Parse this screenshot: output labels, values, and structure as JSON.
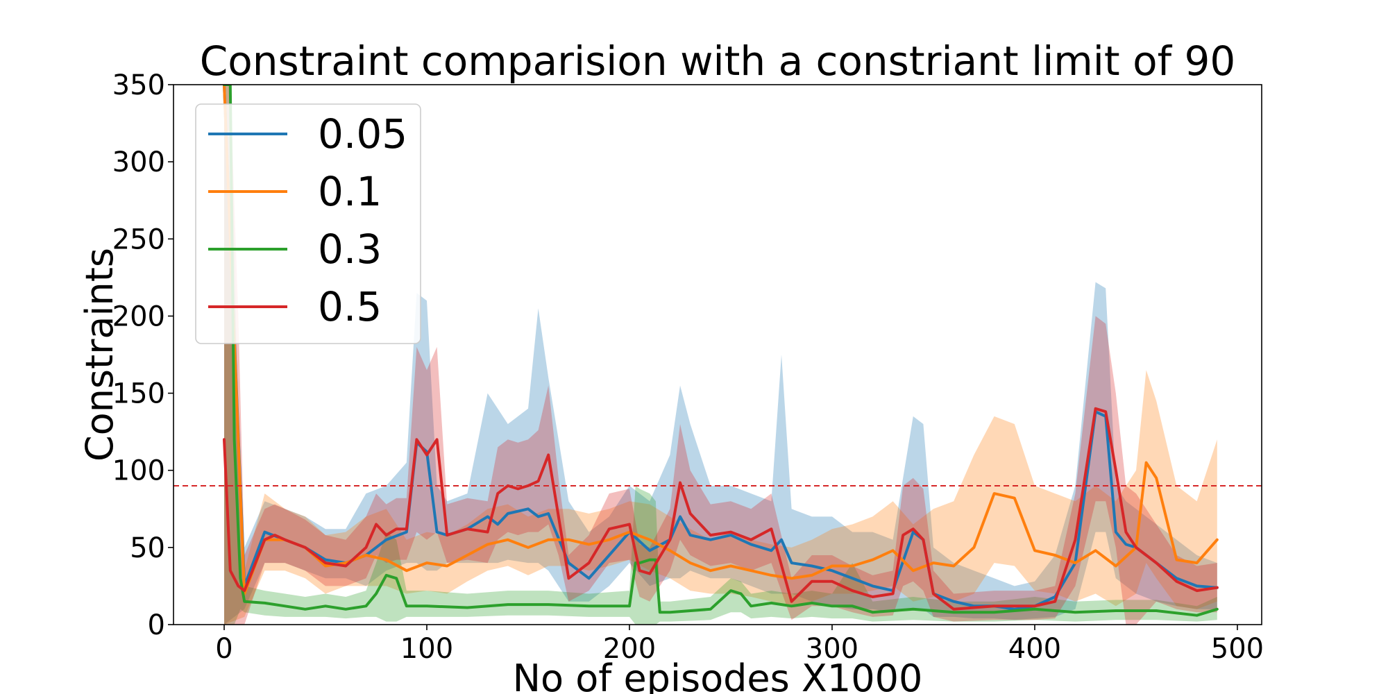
{
  "chart_data": {
    "type": "line",
    "title": "Constraint comparision with a constriant limit of 90",
    "xlabel": "No of episodes X1000",
    "ylabel": "Constraints",
    "xlim": [
      -25,
      512
    ],
    "ylim": [
      0,
      350
    ],
    "xticks": [
      0,
      100,
      200,
      300,
      400,
      500
    ],
    "yticks": [
      0,
      50,
      100,
      150,
      200,
      250,
      300,
      350
    ],
    "grid": false,
    "legend_position": "top-left",
    "limit_line": {
      "y": 90,
      "color": "#d62728",
      "style": "dashed"
    },
    "series": [
      {
        "name": "0.05",
        "color": "#1f77b4",
        "x": [
          0,
          10,
          20,
          30,
          40,
          50,
          60,
          70,
          80,
          90,
          95,
          100,
          105,
          110,
          120,
          130,
          135,
          140,
          150,
          155,
          160,
          170,
          180,
          190,
          200,
          210,
          220,
          225,
          230,
          240,
          250,
          260,
          270,
          275,
          280,
          290,
          300,
          310,
          320,
          330,
          340,
          345,
          350,
          360,
          370,
          380,
          390,
          400,
          410,
          420,
          430,
          435,
          440,
          445,
          450,
          460,
          470,
          480,
          490
        ],
        "mean": [
          350,
          25,
          60,
          55,
          50,
          42,
          40,
          45,
          55,
          60,
          118,
          112,
          60,
          58,
          62,
          70,
          65,
          72,
          75,
          70,
          72,
          40,
          30,
          45,
          60,
          48,
          55,
          70,
          58,
          55,
          58,
          52,
          48,
          55,
          40,
          38,
          35,
          30,
          25,
          22,
          60,
          55,
          20,
          15,
          12,
          12,
          10,
          12,
          18,
          40,
          138,
          135,
          60,
          52,
          50,
          40,
          30,
          25,
          24
        ],
        "lower": [
          0,
          10,
          40,
          40,
          35,
          30,
          30,
          25,
          35,
          40,
          40,
          35,
          35,
          40,
          40,
          40,
          40,
          42,
          40,
          40,
          35,
          15,
          15,
          25,
          40,
          25,
          30,
          30,
          35,
          30,
          30,
          25,
          20,
          20,
          20,
          15,
          12,
          10,
          10,
          8,
          10,
          10,
          5,
          5,
          4,
          4,
          3,
          4,
          5,
          10,
          60,
          60,
          30,
          25,
          20,
          15,
          12,
          10,
          10
        ],
        "upper": [
          350,
          50,
          80,
          75,
          70,
          62,
          62,
          85,
          90,
          105,
          215,
          210,
          90,
          80,
          85,
          150,
          140,
          130,
          140,
          205,
          160,
          80,
          60,
          70,
          90,
          80,
          110,
          155,
          130,
          90,
          90,
          85,
          80,
          175,
          75,
          70,
          70,
          60,
          60,
          55,
          135,
          130,
          50,
          40,
          35,
          30,
          25,
          28,
          45,
          90,
          222,
          218,
          90,
          80,
          75,
          65,
          55,
          45,
          40
        ]
      },
      {
        "name": "0.1",
        "color": "#ff7f0e",
        "x": [
          0,
          10,
          20,
          30,
          40,
          50,
          60,
          70,
          80,
          90,
          100,
          110,
          120,
          130,
          140,
          150,
          160,
          170,
          180,
          190,
          200,
          210,
          220,
          230,
          240,
          250,
          260,
          270,
          280,
          290,
          300,
          310,
          320,
          330,
          340,
          350,
          360,
          370,
          380,
          390,
          400,
          410,
          420,
          430,
          440,
          450,
          455,
          460,
          470,
          480,
          490
        ],
        "mean": [
          350,
          20,
          55,
          55,
          50,
          38,
          40,
          45,
          42,
          35,
          40,
          38,
          45,
          52,
          55,
          50,
          55,
          55,
          52,
          55,
          60,
          55,
          48,
          40,
          35,
          38,
          35,
          32,
          30,
          32,
          38,
          38,
          42,
          48,
          35,
          40,
          38,
          50,
          85,
          82,
          48,
          45,
          40,
          48,
          38,
          50,
          105,
          95,
          42,
          40,
          55
        ],
        "lower": [
          0,
          5,
          35,
          35,
          30,
          20,
          25,
          25,
          25,
          20,
          22,
          20,
          28,
          35,
          38,
          32,
          38,
          38,
          35,
          38,
          42,
          35,
          30,
          22,
          20,
          20,
          18,
          15,
          12,
          15,
          20,
          20,
          22,
          25,
          15,
          18,
          15,
          20,
          40,
          38,
          22,
          20,
          15,
          20,
          12,
          20,
          40,
          30,
          12,
          10,
          15
        ],
        "upper": [
          350,
          35,
          85,
          75,
          70,
          58,
          60,
          70,
          75,
          55,
          60,
          58,
          65,
          75,
          78,
          70,
          75,
          75,
          72,
          75,
          80,
          78,
          70,
          62,
          55,
          60,
          55,
          52,
          50,
          55,
          62,
          65,
          70,
          80,
          65,
          75,
          80,
          110,
          135,
          130,
          90,
          85,
          80,
          90,
          80,
          100,
          165,
          145,
          90,
          80,
          120
        ]
      },
      {
        "name": "0.3",
        "color": "#2ca02c",
        "x": [
          0,
          3,
          5,
          8,
          10,
          20,
          30,
          40,
          50,
          60,
          70,
          75,
          80,
          85,
          90,
          100,
          120,
          140,
          160,
          180,
          200,
          203,
          205,
          210,
          213,
          215,
          220,
          240,
          250,
          255,
          260,
          270,
          280,
          290,
          300,
          310,
          320,
          340,
          360,
          380,
          400,
          420,
          440,
          460,
          480,
          490
        ],
        "mean": [
          350,
          350,
          120,
          30,
          15,
          14,
          12,
          10,
          12,
          10,
          12,
          20,
          32,
          30,
          12,
          12,
          11,
          13,
          13,
          12,
          12,
          40,
          40,
          42,
          42,
          8,
          8,
          10,
          22,
          20,
          12,
          14,
          12,
          14,
          12,
          12,
          8,
          10,
          8,
          8,
          10,
          8,
          9,
          9,
          6,
          10
        ],
        "lower": [
          0,
          0,
          0,
          10,
          8,
          6,
          5,
          5,
          5,
          4,
          5,
          5,
          2,
          2,
          5,
          5,
          5,
          6,
          6,
          5,
          5,
          0,
          0,
          0,
          0,
          2,
          2,
          3,
          8,
          8,
          4,
          5,
          4,
          5,
          4,
          4,
          2,
          3,
          2,
          2,
          3,
          2,
          3,
          3,
          2,
          3
        ],
        "upper": [
          350,
          350,
          250,
          50,
          25,
          22,
          20,
          18,
          20,
          18,
          22,
          40,
          60,
          55,
          22,
          22,
          20,
          22,
          22,
          20,
          22,
          90,
          88,
          85,
          80,
          15,
          15,
          18,
          30,
          28,
          20,
          22,
          20,
          22,
          20,
          40,
          15,
          18,
          15,
          15,
          18,
          15,
          16,
          16,
          12,
          18
        ]
      },
      {
        "name": "0.5",
        "color": "#d62728",
        "x": [
          0,
          3,
          7,
          10,
          20,
          25,
          30,
          40,
          50,
          60,
          70,
          75,
          80,
          85,
          90,
          95,
          100,
          105,
          110,
          120,
          130,
          135,
          140,
          145,
          150,
          155,
          160,
          165,
          170,
          180,
          190,
          200,
          205,
          210,
          220,
          225,
          230,
          240,
          250,
          260,
          270,
          280,
          290,
          300,
          310,
          320,
          330,
          335,
          340,
          345,
          350,
          360,
          380,
          400,
          410,
          420,
          430,
          435,
          440,
          445,
          450,
          460,
          470,
          480,
          490
        ],
        "mean": [
          120,
          35,
          25,
          22,
          55,
          58,
          55,
          50,
          40,
          38,
          50,
          65,
          58,
          62,
          62,
          120,
          110,
          120,
          58,
          62,
          60,
          85,
          90,
          88,
          90,
          93,
          110,
          70,
          30,
          40,
          62,
          65,
          35,
          33,
          55,
          92,
          72,
          58,
          60,
          55,
          62,
          15,
          28,
          28,
          22,
          18,
          20,
          58,
          62,
          55,
          20,
          10,
          12,
          12,
          15,
          55,
          140,
          138,
          100,
          60,
          50,
          40,
          28,
          22,
          24
        ],
        "lower": [
          0,
          0,
          0,
          0,
          40,
          40,
          40,
          35,
          25,
          25,
          30,
          45,
          40,
          42,
          42,
          60,
          55,
          60,
          40,
          42,
          40,
          55,
          60,
          58,
          60,
          60,
          65,
          45,
          15,
          22,
          40,
          42,
          18,
          15,
          35,
          55,
          45,
          38,
          40,
          35,
          40,
          3,
          12,
          12,
          8,
          5,
          6,
          25,
          28,
          22,
          5,
          2,
          3,
          3,
          4,
          25,
          80,
          80,
          50,
          0,
          0,
          15,
          10,
          8,
          8
        ],
        "upper": [
          350,
          350,
          200,
          45,
          75,
          78,
          75,
          68,
          58,
          55,
          70,
          85,
          78,
          82,
          82,
          180,
          165,
          180,
          78,
          82,
          80,
          115,
          120,
          118,
          120,
          126,
          155,
          95,
          45,
          58,
          85,
          88,
          52,
          50,
          75,
          130,
          100,
          78,
          80,
          75,
          85,
          30,
          45,
          45,
          38,
          32,
          35,
          90,
          95,
          88,
          35,
          20,
          22,
          22,
          25,
          85,
          200,
          195,
          150,
          90,
          85,
          65,
          45,
          38,
          40
        ]
      }
    ]
  }
}
